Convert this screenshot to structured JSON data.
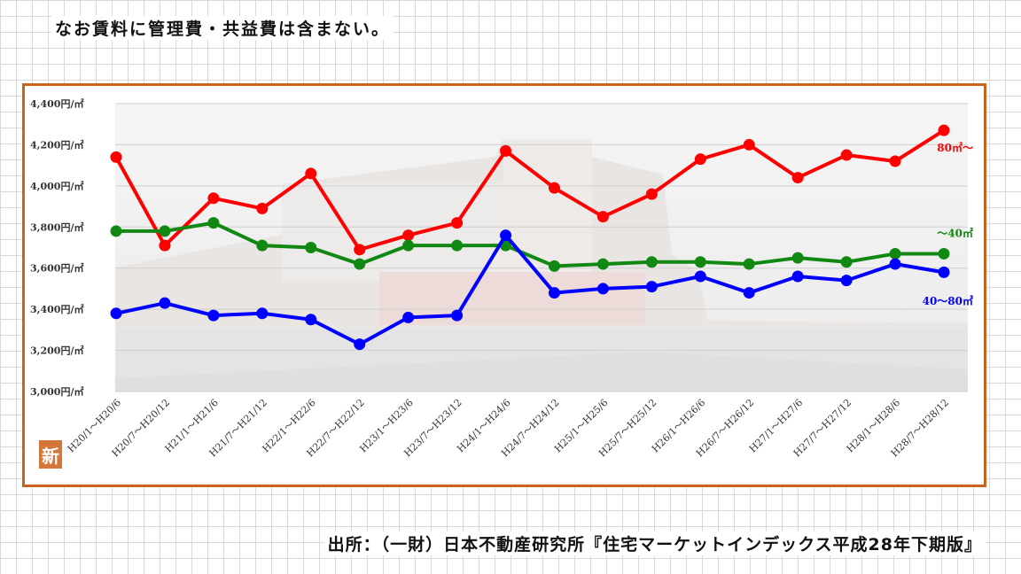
{
  "note_text": "なお賃料に管理費・共益費は含まない。",
  "source_text": "出所：（一財）日本不動産研究所『住宅マーケットインデックス平成28年下期版』",
  "badge_text": "新",
  "chart_data": {
    "type": "line",
    "categories": [
      "H20/1～H20/6",
      "H20/7～H20/12",
      "H21/1～H21/6",
      "H21/7～H21/12",
      "H22/1～H22/6",
      "H22/7～H22/12",
      "H23/1～H23/6",
      "H23/7～H23/12",
      "H24/1～H24/6",
      "H24/7～H24/12",
      "H25/1～H25/6",
      "H25/7～H25/12",
      "H26/1～H26/6",
      "H26/7～H26/12",
      "H27/1～H27/6",
      "H27/7～H27/12",
      "H28/1～H28/6",
      "H28/7～H28/12"
    ],
    "ylim": [
      3000,
      4400
    ],
    "yticks": [
      "3,000円/㎡",
      "3,200円/㎡",
      "3,400円/㎡",
      "3,600円/㎡",
      "3,800円/㎡",
      "4,000円/㎡",
      "4,200円/㎡",
      "4,400円/㎡"
    ],
    "grid": true,
    "series": [
      {
        "name": "80㎡～",
        "color": "#ff0000",
        "values": [
          4140,
          3710,
          3940,
          3890,
          4060,
          3690,
          3760,
          3820,
          4170,
          3990,
          3850,
          3960,
          4130,
          4200,
          4040,
          4150,
          4120,
          4270
        ]
      },
      {
        "name": "～40㎡",
        "color": "#118811",
        "values": [
          3780,
          3780,
          3820,
          3710,
          3700,
          3620,
          3710,
          3710,
          3710,
          3610,
          3620,
          3630,
          3630,
          3620,
          3650,
          3630,
          3670,
          3670
        ]
      },
      {
        "name": "40～80㎡",
        "color": "#0000ff",
        "values": [
          3380,
          3430,
          3370,
          3380,
          3350,
          3230,
          3360,
          3370,
          3760,
          3480,
          3500,
          3510,
          3560,
          3480,
          3560,
          3540,
          3620,
          3580
        ]
      }
    ]
  }
}
